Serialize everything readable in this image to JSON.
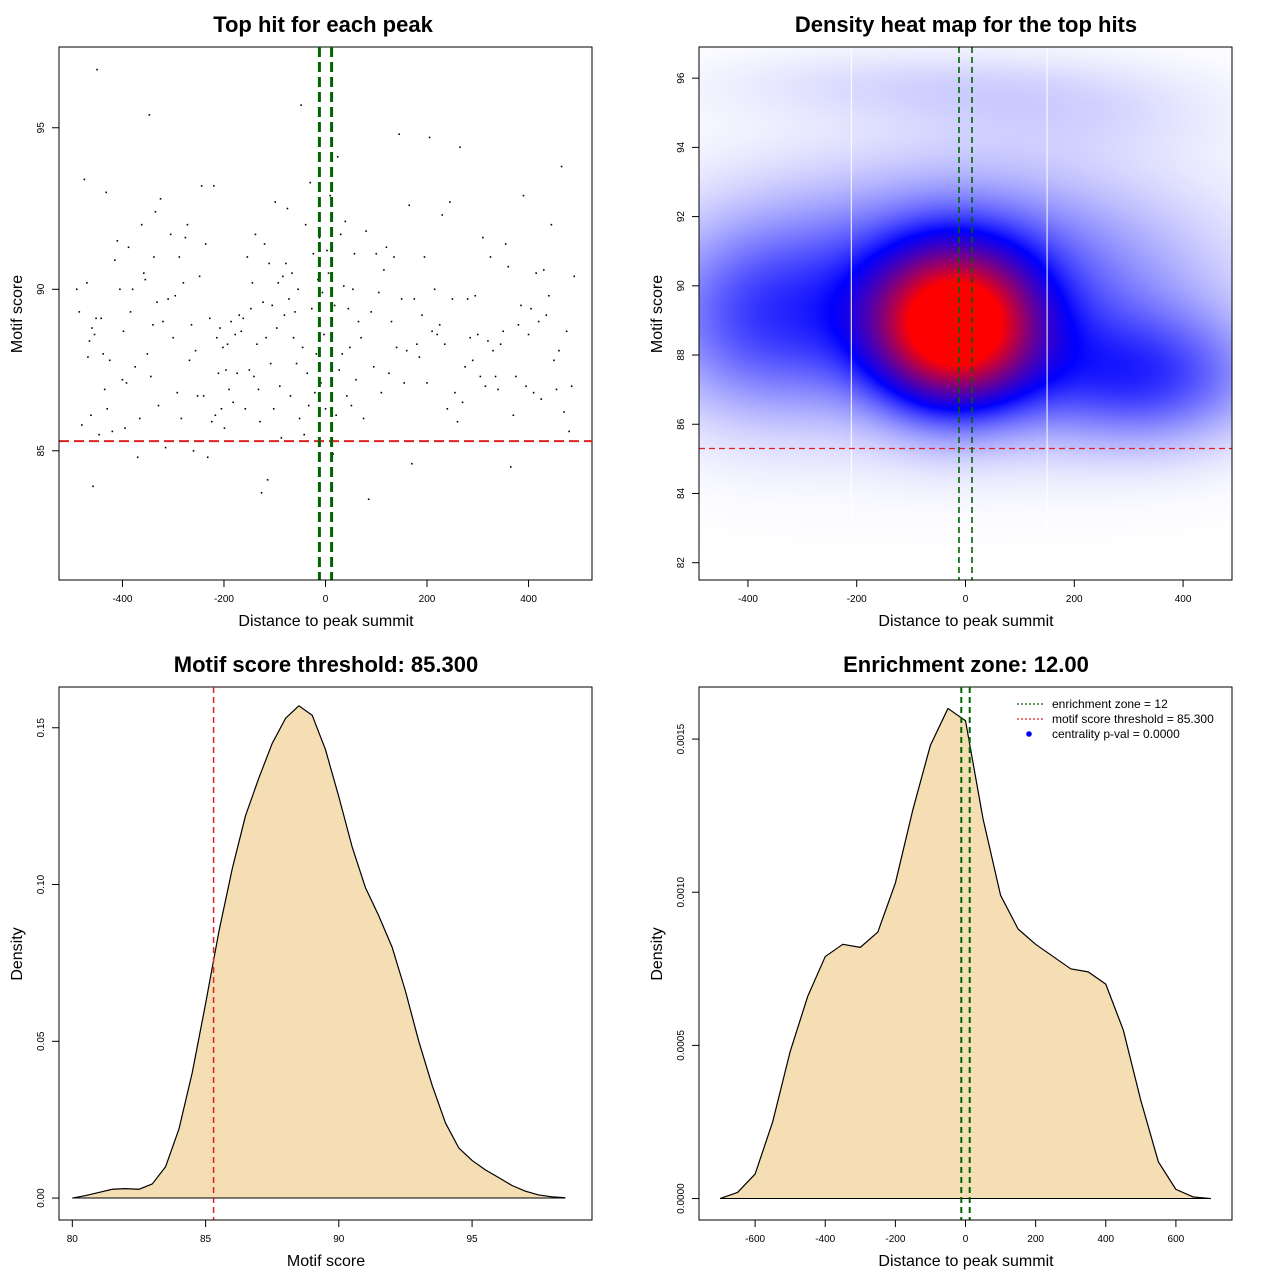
{
  "chart_data": [
    {
      "id": "scatter",
      "type": "scatter",
      "title": "Top hit for each peak",
      "xlabel": "Distance to peak summit",
      "ylabel": "Motif score",
      "xlim": [
        -525,
        525
      ],
      "ylim": [
        81.0,
        97.5
      ],
      "xticks": [
        -400,
        -200,
        0,
        200,
        400
      ],
      "yticks": [
        85,
        90,
        95
      ],
      "colors": {
        "points": "#000000",
        "threshold": "#dd2222",
        "zone": "#006400"
      },
      "threshold_y": 85.3,
      "zone_x": [
        -12,
        12
      ],
      "points": [
        [
          -490,
          90.0
        ],
        [
          -485,
          89.3
        ],
        [
          -480,
          85.8
        ],
        [
          -475,
          93.4
        ],
        [
          -470,
          90.2
        ],
        [
          -468,
          87.9
        ],
        [
          -465,
          88.4
        ],
        [
          -462,
          86.1
        ],
        [
          -460,
          88.8
        ],
        [
          -458,
          83.9
        ],
        [
          -455,
          88.6
        ],
        [
          -452,
          89.1
        ],
        [
          -450,
          96.8
        ],
        [
          -446,
          85.5
        ],
        [
          -442,
          89.1
        ],
        [
          -438,
          88.0
        ],
        [
          -435,
          86.9
        ],
        [
          -432,
          93.0
        ],
        [
          -430,
          86.3
        ],
        [
          -425,
          87.8
        ],
        [
          -420,
          85.6
        ],
        [
          -415,
          90.9
        ],
        [
          -410,
          91.5
        ],
        [
          -405,
          90.0
        ],
        [
          -400,
          87.2
        ],
        [
          -398,
          88.7
        ],
        [
          -395,
          85.7
        ],
        [
          -392,
          87.1
        ],
        [
          -388,
          91.3
        ],
        [
          -384,
          89.3
        ],
        [
          -380,
          90.0
        ],
        [
          -375,
          87.6
        ],
        [
          -370,
          84.8
        ],
        [
          -366,
          86.0
        ],
        [
          -362,
          92.0
        ],
        [
          -358,
          90.5
        ],
        [
          -355,
          90.3
        ],
        [
          -351,
          88.0
        ],
        [
          -347,
          95.4
        ],
        [
          -344,
          87.3
        ],
        [
          -340,
          88.9
        ],
        [
          -338,
          91.0
        ],
        [
          -335,
          92.4
        ],
        [
          -332,
          89.6
        ],
        [
          -329,
          86.4
        ],
        [
          -325,
          92.8
        ],
        [
          -320,
          89.0
        ],
        [
          -315,
          85.1
        ],
        [
          -310,
          89.7
        ],
        [
          -305,
          91.7
        ],
        [
          -300,
          88.5
        ],
        [
          -296,
          89.8
        ],
        [
          -292,
          86.8
        ],
        [
          -288,
          91.0
        ],
        [
          -284,
          86.0
        ],
        [
          -280,
          90.2
        ],
        [
          -276,
          91.6
        ],
        [
          -272,
          92.0
        ],
        [
          -268,
          87.8
        ],
        [
          -264,
          88.9
        ],
        [
          -260,
          85.0
        ],
        [
          -256,
          88.1
        ],
        [
          -252,
          86.7
        ],
        [
          -248,
          90.4
        ],
        [
          -244,
          93.2
        ],
        [
          -240,
          86.7
        ],
        [
          -236,
          91.4
        ],
        [
          -232,
          84.8
        ],
        [
          -228,
          89.1
        ],
        [
          -224,
          85.9
        ],
        [
          -220,
          93.2
        ],
        [
          -217,
          86.1
        ],
        [
          -214,
          88.5
        ],
        [
          -211,
          87.4
        ],
        [
          -208,
          88.8
        ],
        [
          -205,
          86.3
        ],
        [
          -202,
          88.2
        ],
        [
          -199,
          85.7
        ],
        [
          -196,
          87.5
        ],
        [
          -193,
          88.3
        ],
        [
          -190,
          86.9
        ],
        [
          -186,
          89.0
        ],
        [
          -182,
          86.5
        ],
        [
          -178,
          88.6
        ],
        [
          -174,
          87.4
        ],
        [
          -170,
          89.2
        ],
        [
          -166,
          88.7
        ],
        [
          -162,
          89.1
        ],
        [
          -158,
          86.3
        ],
        [
          -154,
          91.0
        ],
        [
          -150,
          87.5
        ],
        [
          -147,
          89.4
        ],
        [
          -144,
          90.2
        ],
        [
          -141,
          87.3
        ],
        [
          -138,
          91.7
        ],
        [
          -135,
          88.3
        ],
        [
          -132,
          86.9
        ],
        [
          -129,
          85.9
        ],
        [
          -126,
          83.7
        ],
        [
          -123,
          89.6
        ],
        [
          -120,
          91.4
        ],
        [
          -117,
          88.5
        ],
        [
          -114,
          84.1
        ],
        [
          -111,
          90.8
        ],
        [
          -108,
          87.7
        ],
        [
          -105,
          89.5
        ],
        [
          -102,
          86.3
        ],
        [
          -99,
          92.7
        ],
        [
          -96,
          88.8
        ],
        [
          -93,
          90.2
        ],
        [
          -90,
          87.0
        ],
        [
          -87,
          85.4
        ],
        [
          -84,
          90.4
        ],
        [
          -81,
          89.2
        ],
        [
          -78,
          90.8
        ],
        [
          -75,
          92.5
        ],
        [
          -72,
          89.7
        ],
        [
          -69,
          86.7
        ],
        [
          -66,
          90.5
        ],
        [
          -63,
          88.5
        ],
        [
          -60,
          89.3
        ],
        [
          -57,
          87.7
        ],
        [
          -54,
          90.0
        ],
        [
          -51,
          86.0
        ],
        [
          -48,
          95.7
        ],
        [
          -45,
          88.2
        ],
        [
          -42,
          85.5
        ],
        [
          -39,
          92.0
        ],
        [
          -36,
          87.4
        ],
        [
          -33,
          86.4
        ],
        [
          -30,
          93.3
        ],
        [
          -27,
          89.4
        ],
        [
          -24,
          91.1
        ],
        [
          -21,
          86.8
        ],
        [
          -18,
          88.0
        ],
        [
          -15,
          90.3
        ],
        [
          -12,
          91.6
        ],
        [
          -9,
          87.1
        ],
        [
          -6,
          89.9
        ],
        [
          -3,
          88.6
        ],
        [
          0,
          86.3
        ],
        [
          3,
          91.2
        ],
        [
          6,
          90.5
        ],
        [
          9,
          92.9
        ],
        [
          12,
          88.9
        ],
        [
          15,
          84.9
        ],
        [
          18,
          89.5
        ],
        [
          21,
          86.1
        ],
        [
          24,
          94.1
        ],
        [
          27,
          87.5
        ],
        [
          30,
          91.7
        ],
        [
          33,
          88.0
        ],
        [
          36,
          90.1
        ],
        [
          39,
          92.1
        ],
        [
          42,
          86.7
        ],
        [
          45,
          89.4
        ],
        [
          48,
          88.2
        ],
        [
          51,
          86.4
        ],
        [
          54,
          90.0
        ],
        [
          57,
          91.1
        ],
        [
          60,
          87.2
        ],
        [
          65,
          89.0
        ],
        [
          70,
          88.5
        ],
        [
          75,
          86.0
        ],
        [
          80,
          91.8
        ],
        [
          85,
          83.5
        ],
        [
          90,
          89.3
        ],
        [
          95,
          87.6
        ],
        [
          100,
          91.1
        ],
        [
          105,
          89.9
        ],
        [
          110,
          86.8
        ],
        [
          115,
          90.6
        ],
        [
          120,
          91.3
        ],
        [
          125,
          87.4
        ],
        [
          130,
          89.0
        ],
        [
          135,
          91.0
        ],
        [
          140,
          88.2
        ],
        [
          145,
          94.8
        ],
        [
          150,
          89.7
        ],
        [
          155,
          87.1
        ],
        [
          160,
          88.1
        ],
        [
          165,
          92.6
        ],
        [
          170,
          84.6
        ],
        [
          175,
          89.7
        ],
        [
          180,
          88.3
        ],
        [
          185,
          87.9
        ],
        [
          190,
          89.2
        ],
        [
          195,
          91.0
        ],
        [
          200,
          87.1
        ],
        [
          205,
          94.7
        ],
        [
          210,
          88.7
        ],
        [
          215,
          90.0
        ],
        [
          220,
          88.6
        ],
        [
          225,
          88.9
        ],
        [
          230,
          92.3
        ],
        [
          235,
          88.3
        ],
        [
          240,
          86.3
        ],
        [
          245,
          92.7
        ],
        [
          250,
          89.7
        ],
        [
          255,
          86.8
        ],
        [
          260,
          85.9
        ],
        [
          265,
          94.4
        ],
        [
          270,
          86.5
        ],
        [
          275,
          87.6
        ],
        [
          280,
          89.7
        ],
        [
          285,
          88.5
        ],
        [
          290,
          87.8
        ],
        [
          295,
          89.8
        ],
        [
          300,
          88.6
        ],
        [
          305,
          87.3
        ],
        [
          310,
          91.6
        ],
        [
          315,
          87.0
        ],
        [
          320,
          88.4
        ],
        [
          325,
          91.0
        ],
        [
          330,
          88.1
        ],
        [
          335,
          87.3
        ],
        [
          340,
          86.9
        ],
        [
          345,
          88.3
        ],
        [
          350,
          88.7
        ],
        [
          355,
          91.4
        ],
        [
          360,
          90.7
        ],
        [
          365,
          84.5
        ],
        [
          370,
          86.1
        ],
        [
          375,
          87.3
        ],
        [
          380,
          88.9
        ],
        [
          385,
          89.5
        ],
        [
          390,
          92.9
        ],
        [
          395,
          87.0
        ],
        [
          400,
          88.6
        ],
        [
          405,
          89.4
        ],
        [
          410,
          86.8
        ],
        [
          415,
          90.5
        ],
        [
          420,
          89.0
        ],
        [
          425,
          86.6
        ],
        [
          430,
          90.6
        ],
        [
          435,
          89.2
        ],
        [
          440,
          89.8
        ],
        [
          445,
          92.0
        ],
        [
          450,
          87.8
        ],
        [
          455,
          86.9
        ],
        [
          460,
          88.1
        ],
        [
          465,
          93.8
        ],
        [
          470,
          86.2
        ],
        [
          475,
          88.7
        ],
        [
          480,
          85.6
        ],
        [
          485,
          87.0
        ],
        [
          490,
          90.4
        ]
      ]
    },
    {
      "id": "heatmap",
      "type": "heatmap",
      "title": "Density heat map for the top hits",
      "xlabel": "Distance to peak summit",
      "ylabel": "Motif score",
      "xlim": [
        -490,
        490
      ],
      "ylim": [
        81.5,
        96.9
      ],
      "xticks": [
        -400,
        -200,
        0,
        200,
        400
      ],
      "yticks": [
        82,
        84,
        86,
        88,
        90,
        92,
        94,
        96
      ],
      "colors": {
        "low": "#ffffff",
        "mid": "#0000ff",
        "high": "#ff0000",
        "threshold": "#dd2222",
        "zone": "#006400",
        "gridline": "#ffffff"
      },
      "threshold_y": 85.3,
      "zone_x": [
        -12,
        12
      ],
      "white_lines_x": [
        -210,
        150
      ],
      "density_sources": [
        {
          "x": -20,
          "y": 88.8,
          "sx": 100,
          "sy": 1.5,
          "w": 1.7
        },
        {
          "x": 0,
          "y": 89.8,
          "sx": 280,
          "sy": 2.3,
          "w": 0.55
        },
        {
          "x": 330,
          "y": 87.3,
          "sx": 150,
          "sy": 1.3,
          "w": 0.45
        },
        {
          "x": -380,
          "y": 89.0,
          "sx": 140,
          "sy": 1.9,
          "w": 0.35
        },
        {
          "x": -100,
          "y": 95.8,
          "sx": 250,
          "sy": 0.7,
          "w": 0.09
        },
        {
          "x": 200,
          "y": 95.0,
          "sx": 200,
          "sy": 0.9,
          "w": 0.08
        }
      ]
    },
    {
      "id": "score-density",
      "type": "area",
      "title": "Motif score threshold: 85.300",
      "xlabel": "Motif score",
      "ylabel": "Density",
      "xlim": [
        79.5,
        99.5
      ],
      "ylim": [
        -0.007,
        0.163
      ],
      "xticks": [
        80,
        85,
        90,
        95
      ],
      "yticks": [
        0.0,
        0.05,
        0.1,
        0.15
      ],
      "ytick_labels": [
        "0.00",
        "0.05",
        "0.10",
        "0.15"
      ],
      "colors": {
        "fill": "#f5deb3",
        "line": "#000000",
        "threshold": "#dd2222"
      },
      "threshold_x": 85.3,
      "x": [
        80.0,
        80.5,
        81.0,
        81.5,
        82.0,
        82.5,
        83.0,
        83.5,
        84.0,
        84.5,
        85.0,
        85.5,
        86.0,
        86.5,
        87.0,
        87.5,
        88.0,
        88.5,
        89.0,
        89.5,
        90.0,
        90.5,
        91.0,
        91.5,
        92.0,
        92.5,
        93.0,
        93.5,
        94.0,
        94.5,
        95.0,
        95.5,
        96.0,
        96.5,
        97.0,
        97.5,
        98.0,
        98.5
      ],
      "y": [
        0.0,
        0.0008,
        0.0018,
        0.0028,
        0.003,
        0.0028,
        0.0045,
        0.01,
        0.022,
        0.04,
        0.062,
        0.085,
        0.105,
        0.122,
        0.134,
        0.145,
        0.153,
        0.157,
        0.154,
        0.143,
        0.128,
        0.112,
        0.099,
        0.09,
        0.08,
        0.066,
        0.05,
        0.036,
        0.024,
        0.016,
        0.012,
        0.009,
        0.0065,
        0.004,
        0.0022,
        0.001,
        0.0004,
        0.0001
      ]
    },
    {
      "id": "distance-density",
      "type": "area",
      "title": "Enrichment zone: 12.00",
      "xlabel": "Distance to peak summit",
      "ylabel": "Density",
      "xlim": [
        -760,
        760
      ],
      "ylim": [
        -7e-05,
        0.00167
      ],
      "xticks": [
        -600,
        -400,
        -200,
        0,
        200,
        400,
        600
      ],
      "yticks": [
        0.0,
        0.0005,
        0.001,
        0.0015
      ],
      "ytick_labels": [
        "0.0000",
        "0.0005",
        "0.0010",
        "0.0015"
      ],
      "colors": {
        "fill": "#f5deb3",
        "line": "#000000",
        "zone": "#006400",
        "threshold_legend": "#dd2222",
        "pval_point": "#0000ff"
      },
      "zone_x": [
        -12,
        12
      ],
      "x": [
        -700,
        -650,
        -600,
        -550,
        -500,
        -450,
        -400,
        -350,
        -300,
        -250,
        -200,
        -150,
        -100,
        -50,
        0,
        50,
        100,
        150,
        200,
        250,
        300,
        350,
        400,
        450,
        500,
        550,
        600,
        650,
        700
      ],
      "y": [
        0.0,
        2e-05,
        8e-05,
        0.00025,
        0.00048,
        0.00066,
        0.00079,
        0.00083,
        0.00082,
        0.00087,
        0.00103,
        0.00127,
        0.00148,
        0.0016,
        0.00156,
        0.00124,
        0.00099,
        0.00088,
        0.00083,
        0.00079,
        0.00075,
        0.00074,
        0.0007,
        0.00055,
        0.00032,
        0.00012,
        3e-05,
        5e-06,
        0.0
      ],
      "legend": [
        "enrichment zone = 12",
        "motif score threshold = 85.300",
        "centrality p-val = 0.0000"
      ]
    }
  ]
}
